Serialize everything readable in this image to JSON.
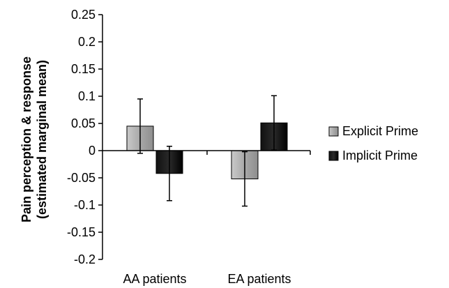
{
  "chart_data": {
    "type": "bar",
    "categories": [
      "AA patients",
      "EA patients"
    ],
    "series": [
      {
        "name": "Explicit Prime",
        "values": [
          0.045,
          -0.052
        ],
        "errors": [
          0.05,
          0.05
        ],
        "color": "#a8a8a8"
      },
      {
        "name": "Implicit Prime",
        "values": [
          -0.042,
          0.051
        ],
        "errors": [
          0.05,
          0.05
        ],
        "color": "#2a2a2a"
      }
    ],
    "title": "",
    "xlabel": "",
    "ylabel_lines": [
      "Pain perception & response",
      "(estimated marginal mean)"
    ],
    "ylim": [
      -0.2,
      0.25
    ],
    "yticks": [
      0.25,
      0.2,
      0.15,
      0.1,
      0.05,
      0,
      -0.05,
      -0.1,
      -0.15,
      -0.2
    ],
    "ytick_labels": [
      "0.25",
      "0.2",
      "0.15",
      "0.1",
      "0.05",
      "0",
      "-0.05",
      "-0.1",
      "-0.15",
      "-0.2"
    ],
    "grid": false,
    "legend_position": "right"
  }
}
